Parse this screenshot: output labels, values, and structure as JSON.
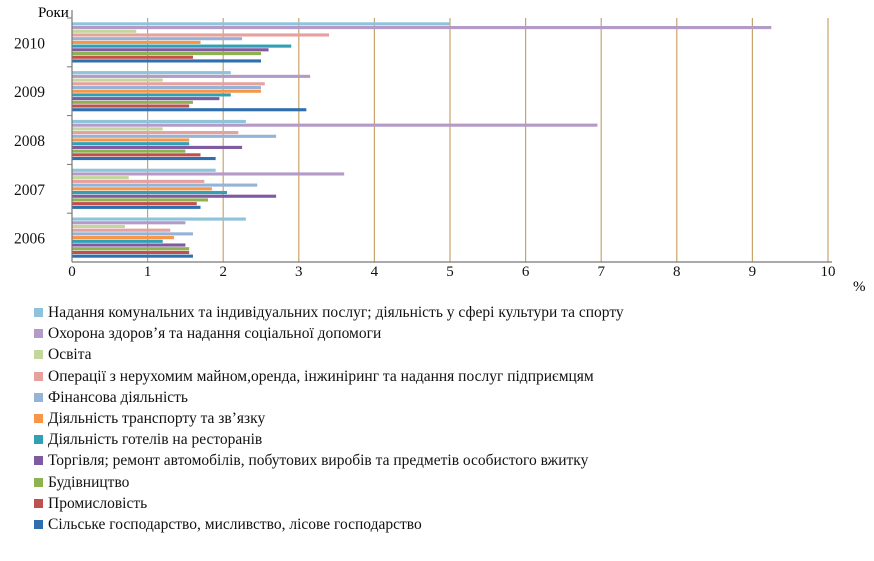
{
  "chart_data": {
    "type": "bar",
    "orientation": "horizontal",
    "ylabel": "Роки",
    "xlabel": "%",
    "xlim": [
      0,
      10
    ],
    "xticks": [
      "0",
      "1",
      "2",
      "3",
      "4",
      "5",
      "6",
      "7",
      "8",
      "9",
      "10"
    ],
    "categories": [
      "2006",
      "2007",
      "2008",
      "2009",
      "2010"
    ],
    "grid": true,
    "legend_position": "bottom",
    "series": [
      {
        "name": "Надання комунальних та індивідуальних послуг; діяльність у сфері культури та спорту",
        "color": "#8fc3dc",
        "values": [
          2.3,
          1.9,
          2.3,
          2.1,
          5.0
        ]
      },
      {
        "name": "Охорона здоров’я та надання соціальної допомоги",
        "color": "#b49ac6",
        "values": [
          1.5,
          3.6,
          6.95,
          3.15,
          9.25
        ]
      },
      {
        "name": "Освіта",
        "color": "#c3d69b",
        "values": [
          0.7,
          0.75,
          1.2,
          1.2,
          0.85
        ]
      },
      {
        "name": "Операції з нерухомим майном,оренда, інжиніринг та надання послуг підприємцям",
        "color": "#e6a09e",
        "values": [
          1.3,
          1.75,
          2.2,
          2.55,
          3.4
        ]
      },
      {
        "name": "Фінансова діяльність",
        "color": "#95b3d7",
        "values": [
          1.6,
          2.45,
          2.7,
          2.5,
          2.25
        ]
      },
      {
        "name": "Діяльність транспорту та зв’язку",
        "color": "#f79646",
        "values": [
          1.35,
          1.85,
          1.55,
          2.5,
          1.7
        ]
      },
      {
        "name": "Діяльність готелів на ресторанів",
        "color": "#31a0b5",
        "values": [
          1.2,
          2.05,
          1.55,
          2.1,
          2.9
        ]
      },
      {
        "name": "Торгівля; ремонт автомобілів, побутових виробів та предметів особистого вжитку",
        "color": "#7f5aa0",
        "values": [
          1.5,
          2.7,
          2.25,
          1.95,
          2.6
        ]
      },
      {
        "name": "Будівництво",
        "color": "#8eb24f",
        "values": [
          1.55,
          1.8,
          1.5,
          1.6,
          2.5
        ]
      },
      {
        "name": "Промисловість",
        "color": "#c0504d",
        "values": [
          1.55,
          1.65,
          1.7,
          1.55,
          1.6
        ]
      },
      {
        "name": "Сільське господарство, мисливство, лісове господарство",
        "color": "#2f6fae",
        "values": [
          1.6,
          1.7,
          1.9,
          3.1,
          2.5
        ]
      }
    ]
  }
}
